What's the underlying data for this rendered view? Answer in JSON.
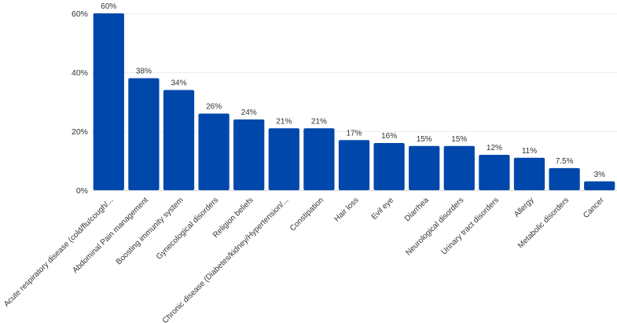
{
  "chart_data": {
    "type": "bar",
    "title": "",
    "xlabel": "",
    "ylabel": "",
    "ylim": [
      0,
      60
    ],
    "y_ticks": [
      0,
      20,
      40,
      60
    ],
    "y_tick_labels": [
      "0%",
      "20%",
      "40%",
      "60%"
    ],
    "grid": true,
    "legend": "none",
    "bar_color": "#0047AB",
    "categories": [
      "Acute respiratory disease (cold/flu/cough/...",
      "Abdominal Pain management",
      "Boosting immunity system",
      "Gynecological disorders",
      "Religion beliefs",
      "Chronic disease (Diabetes/kidney/Hypertension/...",
      "Constipation",
      "Hair loss",
      "Evil eye",
      "Diarrhea",
      "Neurological disorders",
      "Urinary tract disorders",
      "Allergy",
      "Metabolic disorders",
      "Cancer"
    ],
    "values": [
      60,
      38,
      34,
      26,
      24,
      21,
      21,
      17,
      16,
      15,
      15,
      12,
      11,
      7.5,
      3
    ],
    "data_labels": [
      "60%",
      "38%",
      "34%",
      "26%",
      "24%",
      "21%",
      "21%",
      "17%",
      "16%",
      "15%",
      "15%",
      "12%",
      "11%",
      "7.5%",
      "3%"
    ]
  }
}
